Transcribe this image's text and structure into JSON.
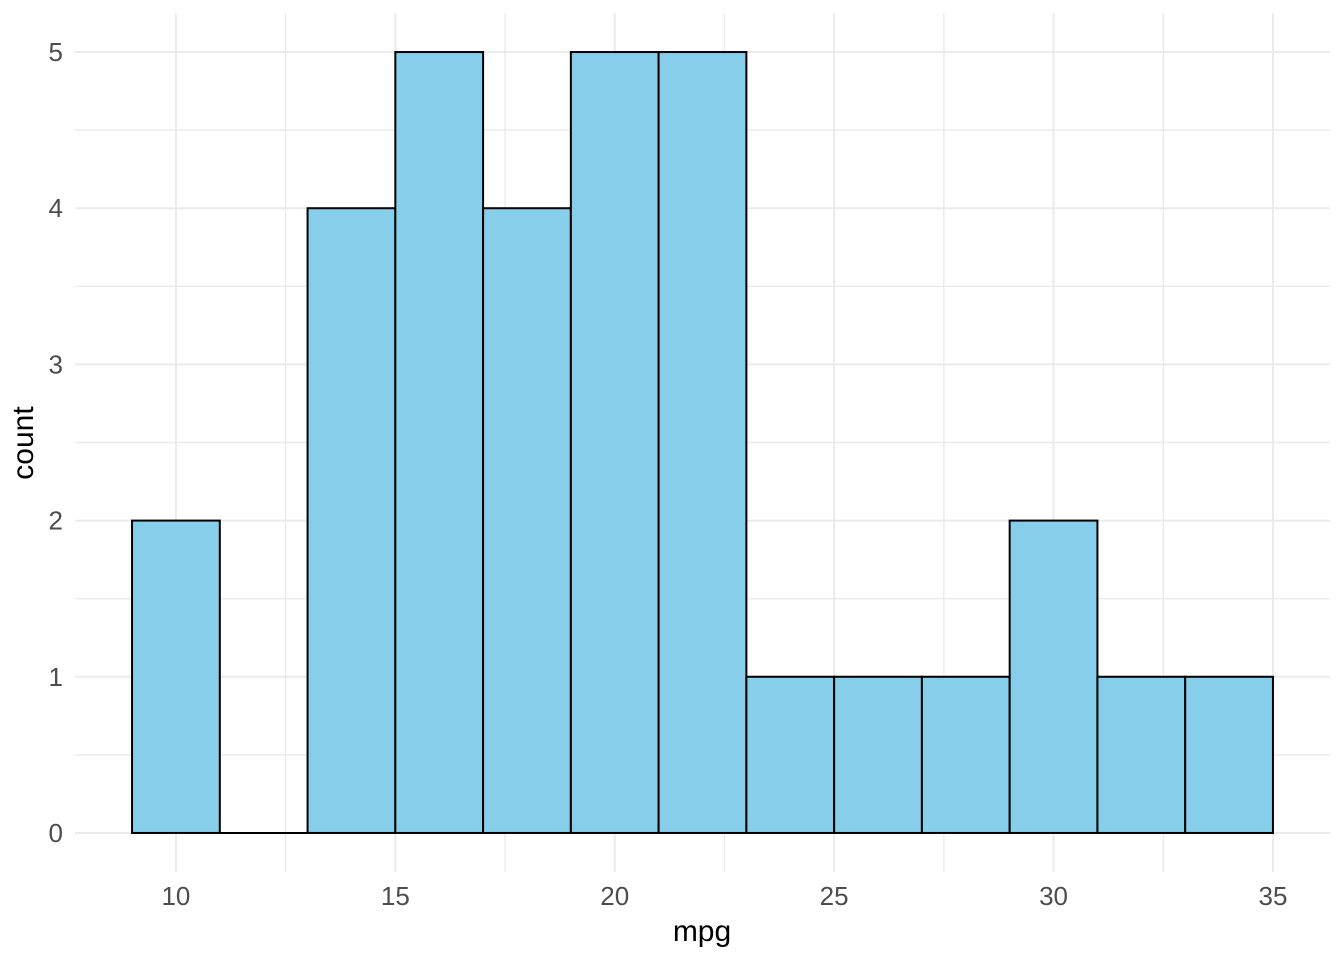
{
  "figure": {
    "background_color": "#ffffff",
    "panel_background_color": "#ffffff",
    "grid_color": "#ebebeb",
    "axis_text_color": "#4d4d4d",
    "axis_title_color": "#000000"
  },
  "chart_data": {
    "type": "bar",
    "subtype": "histogram",
    "title": "",
    "xlabel": "mpg",
    "ylabel": "count",
    "bin_width": 2,
    "bins": [
      {
        "x0": 9,
        "x1": 11,
        "count": 2
      },
      {
        "x0": 11,
        "x1": 13,
        "count": 0
      },
      {
        "x0": 13,
        "x1": 15,
        "count": 4
      },
      {
        "x0": 15,
        "x1": 17,
        "count": 5
      },
      {
        "x0": 17,
        "x1": 19,
        "count": 4
      },
      {
        "x0": 19,
        "x1": 21,
        "count": 5
      },
      {
        "x0": 21,
        "x1": 23,
        "count": 5
      },
      {
        "x0": 23,
        "x1": 25,
        "count": 1
      },
      {
        "x0": 25,
        "x1": 27,
        "count": 1
      },
      {
        "x0": 27,
        "x1": 29,
        "count": 1
      },
      {
        "x0": 29,
        "x1": 31,
        "count": 2
      },
      {
        "x0": 31,
        "x1": 33,
        "count": 1
      },
      {
        "x0": 33,
        "x1": 35,
        "count": 1
      }
    ],
    "x_major_ticks": [
      10,
      15,
      20,
      25,
      30,
      35
    ],
    "x_tick_labels": [
      "10",
      "15",
      "20",
      "25",
      "30",
      "35"
    ],
    "x_minor_ticks": [
      12.5,
      17.5,
      22.5,
      27.5,
      32.5
    ],
    "y_major_ticks": [
      0,
      1,
      2,
      3,
      4,
      5
    ],
    "y_tick_labels": [
      "0",
      "1",
      "2",
      "3",
      "4",
      "5"
    ],
    "y_minor_ticks": [
      0.5,
      1.5,
      2.5,
      3.5,
      4.5
    ],
    "xlim": [
      7.7,
      36.3
    ],
    "ylim": [
      -0.25,
      5.25
    ],
    "grid": true,
    "legend": "none",
    "bar_fill": "#87ceeb",
    "bar_stroke": "#000000"
  }
}
